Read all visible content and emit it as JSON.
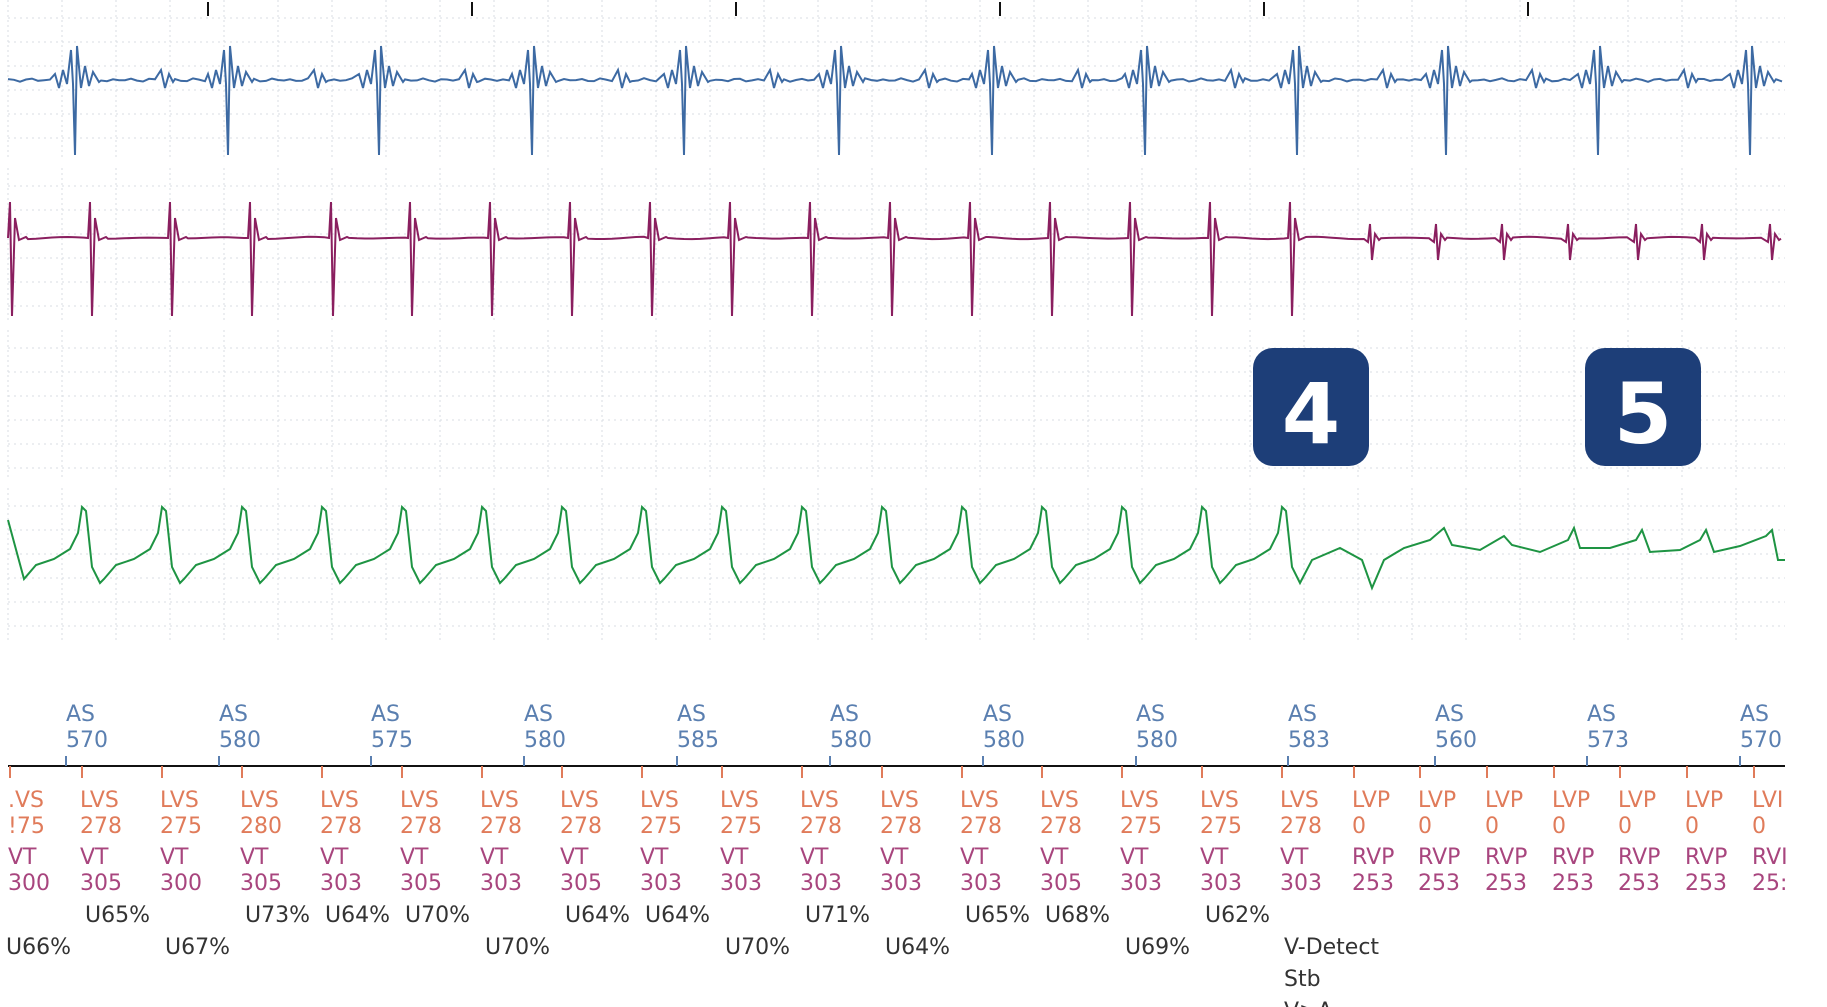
{
  "colors": {
    "ch1": "#3d6aa3",
    "ch2": "#8a1f5f",
    "ch3": "#1e9443",
    "atrial": "#5a7fb0",
    "lv": "#e07b5a",
    "rv": "#a8457e",
    "note": "#333333",
    "badge": "#1d3e78",
    "grid": "#d9dde3"
  },
  "badges": [
    {
      "label": "4"
    },
    {
      "label": "5"
    }
  ],
  "atrial_markers": [
    {
      "label": "AS",
      "value": "570"
    },
    {
      "label": "AS",
      "value": "580"
    },
    {
      "label": "AS",
      "value": "575"
    },
    {
      "label": "AS",
      "value": "580"
    },
    {
      "label": "AS",
      "value": "585"
    },
    {
      "label": "AS",
      "value": "580"
    },
    {
      "label": "AS",
      "value": "580"
    },
    {
      "label": "AS",
      "value": "580"
    },
    {
      "label": "AS",
      "value": "583"
    },
    {
      "label": "AS",
      "value": "560"
    },
    {
      "label": "AS",
      "value": "573"
    },
    {
      "label": "AS",
      "value": "570"
    }
  ],
  "lv_markers": [
    {
      "label": ".VS",
      "value": "!75"
    },
    {
      "label": "LVS",
      "value": "278"
    },
    {
      "label": "LVS",
      "value": "275"
    },
    {
      "label": "LVS",
      "value": "280"
    },
    {
      "label": "LVS",
      "value": "278"
    },
    {
      "label": "LVS",
      "value": "278"
    },
    {
      "label": "LVS",
      "value": "278"
    },
    {
      "label": "LVS",
      "value": "278"
    },
    {
      "label": "LVS",
      "value": "275"
    },
    {
      "label": "LVS",
      "value": "275"
    },
    {
      "label": "LVS",
      "value": "278"
    },
    {
      "label": "LVS",
      "value": "278"
    },
    {
      "label": "LVS",
      "value": "278"
    },
    {
      "label": "LVS",
      "value": "278"
    },
    {
      "label": "LVS",
      "value": "275"
    },
    {
      "label": "LVS",
      "value": "275"
    },
    {
      "label": "LVS",
      "value": "278"
    },
    {
      "label": "LVP",
      "value": "0"
    },
    {
      "label": "LVP",
      "value": "0"
    },
    {
      "label": "LVP",
      "value": "0"
    },
    {
      "label": "LVP",
      "value": "0"
    },
    {
      "label": "LVP",
      "value": "0"
    },
    {
      "label": "LVP",
      "value": "0"
    },
    {
      "label": "LVI",
      "value": "0"
    }
  ],
  "rv_markers": [
    {
      "label": "VT",
      "value": "300"
    },
    {
      "label": "VT",
      "value": "305"
    },
    {
      "label": "VT",
      "value": "300"
    },
    {
      "label": "VT",
      "value": "305"
    },
    {
      "label": "VT",
      "value": "303"
    },
    {
      "label": "VT",
      "value": "305"
    },
    {
      "label": "VT",
      "value": "303"
    },
    {
      "label": "VT",
      "value": "305"
    },
    {
      "label": "VT",
      "value": "303"
    },
    {
      "label": "VT",
      "value": "303"
    },
    {
      "label": "VT",
      "value": "303"
    },
    {
      "label": "VT",
      "value": "303"
    },
    {
      "label": "VT",
      "value": "303"
    },
    {
      "label": "VT",
      "value": "305"
    },
    {
      "label": "VT",
      "value": "303"
    },
    {
      "label": "VT",
      "value": "303"
    },
    {
      "label": "VT",
      "value": "303"
    },
    {
      "label": "RVP",
      "value": "253"
    },
    {
      "label": "RVP",
      "value": "253"
    },
    {
      "label": "RVP",
      "value": "253"
    },
    {
      "label": "RVP",
      "value": "253"
    },
    {
      "label": "RVP",
      "value": "253"
    },
    {
      "label": "RVP",
      "value": "253"
    },
    {
      "label": "RVI",
      "value": "25:"
    }
  ],
  "uniformity_row1": [
    "U65%",
    "U73%",
    "U64%",
    "U70%",
    "U64%",
    "U64%",
    "U71%",
    "U65%",
    "U68%",
    "U62%"
  ],
  "uniformity_row2": [
    "U66%",
    "U67%",
    "U70%",
    "U70%",
    "U64%",
    "U69%"
  ],
  "detection_notes": [
    "V-Detect",
    "Stb",
    "V>A"
  ]
}
